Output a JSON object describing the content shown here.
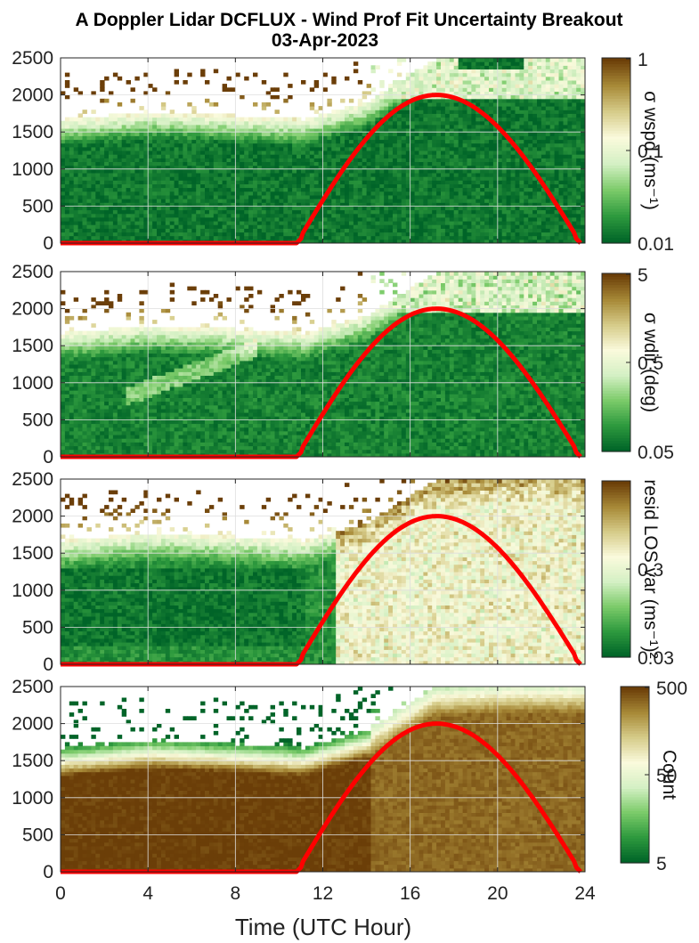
{
  "figure": {
    "title_line1": "A Doppler Lidar DCFLUX - Wind Prof Fit Uncertainty Breakout",
    "title_line2": "03-Apr-2023",
    "xlabel": "Time (UTC Hour)"
  },
  "colors": {
    "ramp": [
      "#006428",
      "#2e9a3e",
      "#7ccb6a",
      "#d4f0c4",
      "#fafadc",
      "#d6cc8a",
      "#a88a38",
      "#6b3e08"
    ],
    "solar_curve": "#ff0000",
    "frame": "#262626",
    "grid": "#dedede"
  },
  "chart_data": [
    {
      "type": "heatmap",
      "name": "sigma-wspd",
      "x": {
        "range": [
          0,
          24
        ],
        "ticks": [
          0,
          4,
          8,
          12,
          16,
          20,
          24
        ],
        "tick_labels_visible": false
      },
      "y": {
        "range": [
          0,
          2500
        ],
        "ticks": [
          0,
          500,
          1000,
          1500,
          2000,
          2500
        ],
        "tick_labels": [
          "0",
          "500",
          "1000",
          "1500",
          "2000",
          "2500"
        ]
      },
      "grid": true,
      "colorbar": {
        "scale": "log",
        "label": "σ wspd (ms⁻¹)",
        "ticks": [
          "1",
          "0.1",
          "0.01"
        ]
      },
      "solar_elevation_curve": {
        "x": [
          0,
          10.8,
          11.0,
          17.2,
          23.6,
          23.8
        ],
        "y": [
          0,
          0,
          60,
          2000,
          60,
          0
        ]
      },
      "data_top_m": [
        [
          0,
          1650
        ],
        [
          4,
          1750
        ],
        [
          8,
          1700
        ],
        [
          11,
          1650
        ],
        [
          14,
          1900
        ],
        [
          17,
          2450
        ],
        [
          20,
          2500
        ],
        [
          23.8,
          2500
        ]
      ]
    },
    {
      "type": "heatmap",
      "name": "sigma-wdir",
      "x": {
        "range": [
          0,
          24
        ],
        "ticks": [
          0,
          4,
          8,
          12,
          16,
          20,
          24
        ],
        "tick_labels_visible": false
      },
      "y": {
        "range": [
          0,
          2500
        ],
        "ticks": [
          0,
          500,
          1000,
          1500,
          2000,
          2500
        ],
        "tick_labels": [
          "0",
          "500",
          "1000",
          "1500",
          "2000",
          "2500"
        ]
      },
      "grid": true,
      "colorbar": {
        "scale": "log",
        "label": "σ wdir (deg)",
        "ticks": [
          "5",
          "0.5",
          "0.05"
        ]
      },
      "solar_elevation_curve": {
        "x": [
          0,
          10.8,
          11.0,
          17.2,
          23.6,
          23.8
        ],
        "y": [
          0,
          0,
          60,
          2000,
          60,
          0
        ]
      },
      "data_top_m": [
        [
          0,
          1650
        ],
        [
          4,
          1750
        ],
        [
          8,
          1700
        ],
        [
          11,
          1650
        ],
        [
          14,
          1900
        ],
        [
          17,
          2450
        ],
        [
          20,
          2500
        ],
        [
          23.8,
          2500
        ]
      ]
    },
    {
      "type": "heatmap",
      "name": "resid-los-var",
      "x": {
        "range": [
          0,
          24
        ],
        "ticks": [
          0,
          4,
          8,
          12,
          16,
          20,
          24
        ],
        "tick_labels_visible": false
      },
      "y": {
        "range": [
          0,
          2500
        ],
        "ticks": [
          0,
          500,
          1000,
          1500,
          2000,
          2500
        ],
        "tick_labels": [
          "0",
          "500",
          "1000",
          "1500",
          "2000",
          "2500"
        ]
      },
      "grid": true,
      "colorbar": {
        "scale": "log",
        "label": "resid LOS var (ms⁻¹)²",
        "ticks": [
          "",
          "0.3",
          "0.03"
        ]
      },
      "solar_elevation_curve": {
        "x": [
          0,
          10.8,
          11.0,
          17.2,
          23.6,
          23.8
        ],
        "y": [
          0,
          0,
          60,
          2000,
          60,
          0
        ]
      },
      "data_top_m": [
        [
          0,
          1650
        ],
        [
          4,
          1750
        ],
        [
          8,
          1700
        ],
        [
          11,
          1650
        ],
        [
          14,
          1900
        ],
        [
          17,
          2450
        ],
        [
          20,
          2500
        ],
        [
          23.8,
          2500
        ]
      ]
    },
    {
      "type": "heatmap",
      "name": "count",
      "x": {
        "range": [
          0,
          24
        ],
        "ticks": [
          0,
          4,
          8,
          12,
          16,
          20,
          24
        ],
        "tick_labels": [
          "0",
          "4",
          "8",
          "12",
          "16",
          "20",
          "24"
        ]
      },
      "y": {
        "range": [
          0,
          2500
        ],
        "ticks": [
          0,
          500,
          1000,
          1500,
          2000,
          2500
        ],
        "tick_labels": [
          "0",
          "500",
          "1000",
          "1500",
          "2000",
          "2500"
        ]
      },
      "grid": true,
      "colorbar": {
        "scale": "log",
        "label": "Count",
        "ticks": [
          "500",
          "50",
          "5"
        ]
      },
      "solar_elevation_curve": {
        "x": [
          0,
          10.8,
          11.0,
          17.2,
          23.6,
          23.8
        ],
        "y": [
          0,
          0,
          60,
          2000,
          60,
          0
        ]
      },
      "data_top_m": [
        [
          0,
          1650
        ],
        [
          4,
          1750
        ],
        [
          8,
          1700
        ],
        [
          11,
          1650
        ],
        [
          14,
          1900
        ],
        [
          17,
          2450
        ],
        [
          20,
          2500
        ],
        [
          23.8,
          2500
        ]
      ]
    }
  ]
}
